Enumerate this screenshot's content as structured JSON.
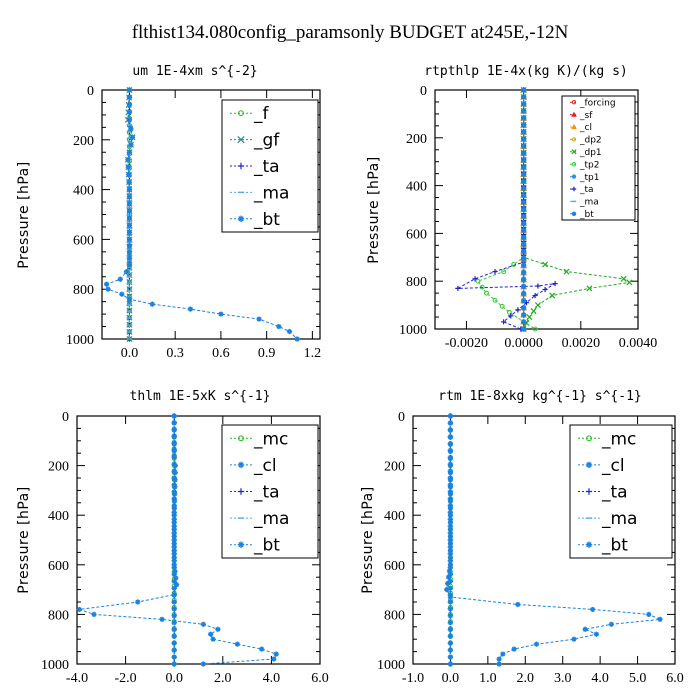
{
  "figure": {
    "title": "flthist134.080config_paramsonly  BUDGET at245E,-12N"
  },
  "chart_data": [
    {
      "type": "line",
      "title": "um   1E-4xm s^{-2}",
      "ylabel": "Pressure [hPa]",
      "xlabel": "",
      "xlim": [
        -0.18,
        1.25
      ],
      "ylim": [
        1000,
        0
      ],
      "xticks": [
        0.0,
        0.3,
        0.6,
        0.9,
        1.2
      ],
      "xtick_labels": [
        "0.0",
        "0.3",
        "0.6",
        "0.9",
        "1.2"
      ],
      "yticks": [
        0,
        200,
        400,
        600,
        800,
        1000
      ],
      "ytick_labels": [
        "0",
        "200",
        "400",
        "600",
        "800",
        "1000"
      ],
      "legend_position": "top-right",
      "series": [
        {
          "name": "_f",
          "color": "#22bb22",
          "marker": "circle",
          "points": [
            [
              0.0,
              0
            ],
            [
              0.0,
              200
            ],
            [
              0.0,
              400
            ],
            [
              0.0,
              600
            ],
            [
              0.0,
              800
            ],
            [
              0.0,
              1000
            ]
          ]
        },
        {
          "name": "_gf",
          "color": "#2e8b8b",
          "marker": "x",
          "points": [
            [
              0.0,
              0
            ],
            [
              -0.01,
              120
            ],
            [
              0.02,
              190
            ],
            [
              -0.01,
              280
            ],
            [
              0.0,
              400
            ],
            [
              0.0,
              1000
            ]
          ]
        },
        {
          "name": "_ta",
          "color": "#2222cc",
          "marker": "plus",
          "points": [
            [
              0.0,
              0
            ],
            [
              0.0,
              500
            ],
            [
              0.0,
              1000
            ]
          ]
        },
        {
          "name": "_ma",
          "color": "#55aadd",
          "marker": "dash",
          "points": [
            [
              0.0,
              0
            ],
            [
              0.0,
              500
            ],
            [
              0.0,
              1000
            ]
          ]
        },
        {
          "name": "_bt",
          "color": "#1c82e0",
          "marker": "star",
          "points": [
            [
              0.0,
              0
            ],
            [
              0.0,
              120
            ],
            [
              0.02,
              190
            ],
            [
              -0.01,
              280
            ],
            [
              0.0,
              400
            ],
            [
              0.0,
              600
            ],
            [
              0.0,
              700
            ],
            [
              -0.02,
              730
            ],
            [
              -0.06,
              760
            ],
            [
              -0.15,
              780
            ],
            [
              -0.14,
              800
            ],
            [
              -0.05,
              820
            ],
            [
              0.0,
              840
            ],
            [
              0.15,
              860
            ],
            [
              0.4,
              880
            ],
            [
              0.6,
              900
            ],
            [
              0.85,
              920
            ],
            [
              0.98,
              950
            ],
            [
              1.05,
              970
            ],
            [
              1.1,
              1000
            ]
          ]
        }
      ]
    },
    {
      "type": "line",
      "title": "rtpthlp   1E-4x(kg K)/(kg s)",
      "ylabel": "Pressure [hPa]",
      "xlabel": "",
      "xlim": [
        -0.0031,
        0.004
      ],
      "ylim": [
        1000,
        0
      ],
      "xticks": [
        -0.002,
        0.0,
        0.002,
        0.004
      ],
      "xtick_labels": [
        "-0.0020",
        "0.0000",
        "0.0020",
        "0.0040"
      ],
      "yticks": [
        0,
        200,
        400,
        600,
        800,
        1000
      ],
      "ytick_labels": [
        "0",
        "200",
        "400",
        "600",
        "800",
        "1000"
      ],
      "legend_position": "top-right",
      "series": [
        {
          "name": "_forcing",
          "color": "#dd2222",
          "marker": "circle",
          "points": [
            [
              0.0,
              0
            ],
            [
              0.0,
              500
            ],
            [
              0.0,
              1000
            ]
          ]
        },
        {
          "name": "_sf",
          "color": "#dd2222",
          "marker": "triangle",
          "points": [
            [
              0.0,
              0
            ],
            [
              0.0,
              500
            ],
            [
              0.0,
              1000
            ]
          ]
        },
        {
          "name": "_cl",
          "color": "#ee9900",
          "marker": "triangle",
          "points": [
            [
              0.0,
              0
            ],
            [
              0.0,
              500
            ],
            [
              0.0,
              1000
            ]
          ]
        },
        {
          "name": "_dp2",
          "color": "#ccaa00",
          "marker": "circle",
          "points": [
            [
              0.0,
              0
            ],
            [
              0.0,
              500
            ],
            [
              0.0,
              1000
            ]
          ]
        },
        {
          "name": "_dp1",
          "color": "#22aa22",
          "marker": "x",
          "points": [
            [
              0.0,
              0
            ],
            [
              0.0,
              700
            ],
            [
              0.0015,
              760
            ],
            [
              0.0035,
              790
            ],
            [
              0.0037,
              805
            ],
            [
              0.0023,
              830
            ],
            [
              0.001,
              860
            ],
            [
              0.0005,
              900
            ],
            [
              0.0002,
              950
            ],
            [
              0.0,
              1000
            ]
          ]
        },
        {
          "name": "_tp2",
          "color": "#33cc33",
          "marker": "circle",
          "points": [
            [
              0.0,
              0
            ],
            [
              0.0,
              700
            ],
            [
              -0.0007,
              760
            ],
            [
              -0.0016,
              800
            ],
            [
              -0.0013,
              850
            ],
            [
              -0.001,
              880
            ],
            [
              -0.0005,
              930
            ],
            [
              0.0,
              970
            ],
            [
              0.0004,
              1000
            ]
          ]
        },
        {
          "name": "_tp1",
          "color": "#2299dd",
          "marker": "star",
          "points": [
            [
              0.0,
              0
            ],
            [
              0.0,
              700
            ],
            [
              0.0,
              1000
            ]
          ]
        },
        {
          "name": "_ta",
          "color": "#2222cc",
          "marker": "plus",
          "points": [
            [
              0.0,
              0
            ],
            [
              0.0,
              720
            ],
            [
              -0.001,
              760
            ],
            [
              -0.0017,
              790
            ],
            [
              -0.0023,
              830
            ],
            [
              0.0005,
              820
            ],
            [
              0.0011,
              810
            ],
            [
              0.0004,
              860
            ],
            [
              -0.0002,
              920
            ],
            [
              -0.0007,
              970
            ],
            [
              -0.0001,
              1000
            ]
          ]
        },
        {
          "name": "_ma",
          "color": "#55aadd",
          "marker": "dash",
          "points": [
            [
              0.0,
              0
            ],
            [
              0.0,
              500
            ],
            [
              0.0,
              1000
            ]
          ]
        },
        {
          "name": "_bt",
          "color": "#1c82e0",
          "marker": "star",
          "points": [
            [
              0.0,
              0
            ],
            [
              0.0,
              500
            ],
            [
              0.0,
              1000
            ]
          ]
        }
      ]
    },
    {
      "type": "line",
      "title": "thlm   1E-5xK s^{-1}",
      "ylabel": "Pressure [hPa]",
      "xlabel": "",
      "xlim": [
        -4.0,
        6.0
      ],
      "ylim": [
        1000,
        0
      ],
      "xticks": [
        -4.0,
        -2.0,
        0.0,
        2.0,
        4.0,
        6.0
      ],
      "xtick_labels": [
        "-4.0",
        "-2.0",
        "0.0",
        "2.0",
        "4.0",
        "6.0"
      ],
      "yticks": [
        0,
        200,
        400,
        600,
        800,
        1000
      ],
      "ytick_labels": [
        "0",
        "200",
        "400",
        "600",
        "800",
        "1000"
      ],
      "legend_position": "top-right",
      "series": [
        {
          "name": "_mc",
          "color": "#22bb22",
          "marker": "circle",
          "points": [
            [
              0.0,
              0
            ],
            [
              0.0,
              200
            ],
            [
              0.0,
              400
            ],
            [
              0.0,
              600
            ],
            [
              0.0,
              800
            ],
            [
              0.0,
              1000
            ]
          ]
        },
        {
          "name": "_cl",
          "color": "#1c82e0",
          "marker": "star",
          "points": [
            [
              0.0,
              0
            ],
            [
              0.0,
              160
            ],
            [
              0.05,
              200
            ],
            [
              0.0,
              400
            ],
            [
              0.0,
              600
            ],
            [
              0.1,
              680
            ],
            [
              0.0,
              720
            ],
            [
              -1.5,
              750
            ],
            [
              -3.9,
              780
            ],
            [
              -3.3,
              800
            ],
            [
              -0.5,
              820
            ],
            [
              1.2,
              840
            ],
            [
              1.8,
              860
            ],
            [
              1.5,
              880
            ],
            [
              1.6,
              900
            ],
            [
              2.6,
              920
            ],
            [
              3.6,
              940
            ],
            [
              4.2,
              960
            ],
            [
              4.1,
              980
            ],
            [
              1.2,
              1000
            ]
          ]
        },
        {
          "name": "_ta",
          "color": "#2222cc",
          "marker": "plus",
          "points": [
            [
              0.0,
              0
            ],
            [
              0.0,
              500
            ],
            [
              0.0,
              1000
            ]
          ]
        },
        {
          "name": "_ma",
          "color": "#55aadd",
          "marker": "dash",
          "points": [
            [
              0.0,
              0
            ],
            [
              0.0,
              500
            ],
            [
              0.0,
              1000
            ]
          ]
        },
        {
          "name": "_bt",
          "color": "#1c82e0",
          "marker": "star",
          "points": [
            [
              0.0,
              0
            ],
            [
              0.0,
              500
            ],
            [
              0.0,
              1000
            ]
          ]
        }
      ]
    },
    {
      "type": "line",
      "title": "rtm   1E-8xkg kg^{-1} s^{-1}",
      "ylabel": "Pressure [hPa]",
      "xlabel": "",
      "xlim": [
        -1.0,
        6.0
      ],
      "ylim": [
        1000,
        0
      ],
      "xticks": [
        -1.0,
        0.0,
        1.0,
        2.0,
        3.0,
        4.0,
        5.0,
        6.0
      ],
      "xtick_labels": [
        "-1.0",
        "0.0",
        "1.0",
        "2.0",
        "3.0",
        "4.0",
        "5.0",
        "6.0"
      ],
      "yticks": [
        0,
        200,
        400,
        600,
        800,
        1000
      ],
      "ytick_labels": [
        "0",
        "200",
        "400",
        "600",
        "800",
        "1000"
      ],
      "legend_position": "top-right",
      "series": [
        {
          "name": "_mc",
          "color": "#22bb22",
          "marker": "circle",
          "points": [
            [
              0.0,
              0
            ],
            [
              0.0,
              200
            ],
            [
              0.0,
              400
            ],
            [
              0.0,
              600
            ],
            [
              0.0,
              800
            ],
            [
              0.0,
              1000
            ]
          ]
        },
        {
          "name": "_cl",
          "color": "#1c82e0",
          "marker": "star",
          "points": [
            [
              0.0,
              0
            ],
            [
              0.0,
              600
            ],
            [
              -0.1,
              700
            ],
            [
              0.0,
              730
            ],
            [
              1.8,
              760
            ],
            [
              3.8,
              780
            ],
            [
              5.3,
              800
            ],
            [
              5.6,
              820
            ],
            [
              4.3,
              840
            ],
            [
              3.6,
              860
            ],
            [
              3.9,
              880
            ],
            [
              3.3,
              900
            ],
            [
              2.3,
              920
            ],
            [
              1.7,
              940
            ],
            [
              1.4,
              960
            ],
            [
              1.3,
              980
            ],
            [
              1.3,
              1000
            ]
          ]
        },
        {
          "name": "_ta",
          "color": "#2222cc",
          "marker": "plus",
          "points": [
            [
              0.0,
              0
            ],
            [
              0.0,
              500
            ],
            [
              0.0,
              1000
            ]
          ]
        },
        {
          "name": "_ma",
          "color": "#55aadd",
          "marker": "dash",
          "points": [
            [
              0.0,
              0
            ],
            [
              0.0,
              500
            ],
            [
              0.0,
              1000
            ]
          ]
        },
        {
          "name": "_bt",
          "color": "#1c82e0",
          "marker": "star",
          "points": [
            [
              0.0,
              0
            ],
            [
              0.0,
              500
            ],
            [
              0.0,
              1000
            ]
          ]
        }
      ]
    }
  ]
}
